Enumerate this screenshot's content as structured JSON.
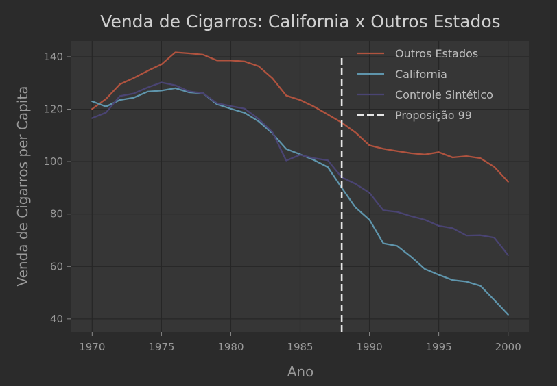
{
  "chart_data": {
    "type": "line",
    "title": "Venda de Cigarros: California x Outros Estados",
    "xlabel": "Ano",
    "ylabel": "Venda de Cigarros per Capita",
    "xlim": [
      1968.5,
      2001.5
    ],
    "ylim": [
      35,
      146
    ],
    "xticks": [
      1970,
      1975,
      1980,
      1985,
      1990,
      1995,
      2000
    ],
    "yticks": [
      40,
      60,
      80,
      100,
      120,
      140
    ],
    "grid": true,
    "legend_position": "top-right",
    "background": "#2b2b2b",
    "plot_background": "#363636",
    "x": [
      1970,
      1971,
      1972,
      1973,
      1974,
      1975,
      1976,
      1977,
      1978,
      1979,
      1980,
      1981,
      1982,
      1983,
      1984,
      1985,
      1986,
      1987,
      1988,
      1989,
      1990,
      1991,
      1992,
      1993,
      1994,
      1995,
      1996,
      1997,
      1998,
      1999,
      2000
    ],
    "series": [
      {
        "name": "Outros Estados",
        "color": "#b0533f",
        "dash": false,
        "values": [
          120.1,
          123.9,
          129.5,
          131.9,
          134.6,
          137.1,
          141.7,
          141.3,
          140.8,
          138.6,
          138.6,
          138.2,
          136.4,
          131.8,
          125.2,
          123.5,
          121.0,
          118.0,
          114.9,
          111.1,
          106.2,
          104.9,
          104.0,
          103.2,
          102.7,
          103.6,
          101.6,
          102.1,
          101.3,
          98.0,
          92.3
        ]
      },
      {
        "name": "California",
        "color": "#5f95ac",
        "dash": false,
        "values": [
          123.0,
          121.0,
          123.5,
          124.4,
          126.7,
          127.1,
          128.0,
          126.4,
          126.1,
          121.9,
          120.2,
          118.6,
          115.4,
          110.8,
          104.8,
          102.8,
          100.6,
          97.9,
          90.0,
          82.5,
          77.8,
          68.8,
          67.8,
          63.7,
          59.0,
          56.8,
          54.8,
          54.2,
          52.6,
          47.2,
          41.6
        ]
      },
      {
        "name": "Controle Sintético",
        "color": "#4a4473",
        "dash": false,
        "values": [
          116.6,
          118.7,
          125.0,
          126.0,
          128.3,
          130.2,
          129.1,
          126.8,
          126.1,
          122.3,
          121.2,
          120.2,
          116.3,
          111.3,
          100.4,
          102.6,
          101.3,
          100.5,
          94.0,
          91.5,
          88.1,
          81.4,
          80.8,
          79.2,
          77.8,
          75.5,
          74.6,
          71.8,
          71.9,
          71.0,
          64.3
        ]
      },
      {
        "name": "Proposição 99",
        "color": "#e6e6e6",
        "dash": true,
        "vline_x": 1988,
        "ymax": 140
      }
    ]
  }
}
